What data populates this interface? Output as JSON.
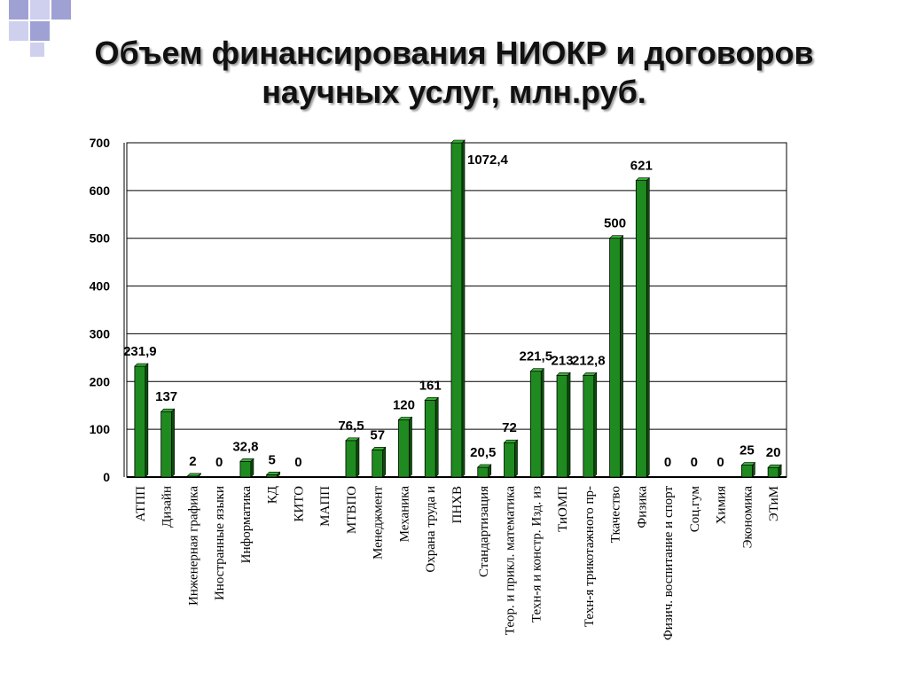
{
  "title": {
    "line1": "Объем финансирования НИОКР и договоров",
    "line2": "научных услуг, млн.руб."
  },
  "colors": {
    "bar": "#1f8a1f",
    "bar_dark": "#0b4d0b",
    "bar_light": "#38b038",
    "deco_dark": "#9fa1d4",
    "deco_light": "#cfd0ee"
  },
  "chart_data": {
    "type": "bar",
    "title": "Объем финансирования НИОКР и договоров научных услуг, млн.руб.",
    "xlabel": "",
    "ylabel": "",
    "ylim": [
      0,
      700
    ],
    "yticks": [
      "0",
      "100",
      "200",
      "300",
      "400",
      "500",
      "600",
      "700"
    ],
    "grid": true,
    "legend": "none",
    "categories": [
      "АТПП",
      "Дизайн",
      "Инженерная графика",
      "Иностранные языки",
      "Информатика",
      "КД",
      "КИТО",
      "МАПП",
      "МТВПО",
      "Менеджмент",
      "Механика",
      "Охрана труда и",
      "ПНХВ",
      "Стандартизация",
      "Теор. и прикл. математика",
      "Техн-я и констр. Изд. из",
      "ТиОМП",
      "Техн-я трикотажного пр-",
      "Ткачество",
      "Физика",
      "Физич. воспитание и спорт",
      "Соц.гум",
      "Химия",
      "Экономика",
      "ЭТиМ"
    ],
    "values": [
      231.9,
      137,
      2,
      0,
      32.8,
      5,
      0,
      null,
      76.5,
      57,
      120,
      161,
      1072.4,
      20.5,
      72,
      221.5,
      213,
      212.8,
      500,
      621,
      0,
      0,
      0,
      25,
      20
    ],
    "data_labels": [
      "231,9",
      "137",
      "2",
      "0",
      "32,8",
      "5",
      "0",
      "",
      "76,5",
      "57",
      "120",
      "161",
      "1072,4",
      "20,5",
      "72",
      "221,5",
      "213",
      "212,8",
      "500",
      "621",
      "0",
      "0",
      "0",
      "25",
      "20"
    ]
  }
}
